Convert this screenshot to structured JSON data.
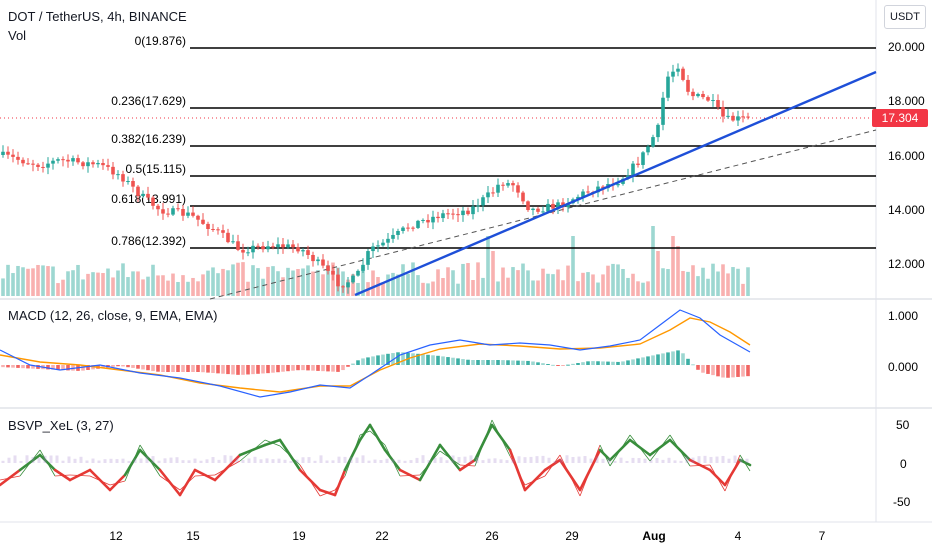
{
  "header": {
    "symbol_line": "DOT / TetherUS, 4h, BINANCE",
    "volume_label": "Vol",
    "currency_button": "USDT",
    "last_price": "17.304"
  },
  "price_axis": {
    "labels": [
      "20.000",
      "18.000",
      "16.000",
      "14.000",
      "12.000"
    ]
  },
  "fib_levels": [
    {
      "label": "0(19.876)"
    },
    {
      "label": "0.236(17.629)"
    },
    {
      "label": "0.382(16.239)"
    },
    {
      "label": "0.5(15.115)"
    },
    {
      "label": "0.618(13.991)"
    },
    {
      "label": "0.786(12.392)"
    }
  ],
  "macd": {
    "label": "MACD (12, 26, close, 9, EMA, EMA)",
    "axis_labels": [
      "1.000",
      "0.000"
    ]
  },
  "bsvp": {
    "label": "BSVP_XeL (3, 27)",
    "axis_labels": [
      "50",
      "0",
      "-50"
    ]
  },
  "time_axis": {
    "labels": [
      "12",
      "15",
      "19",
      "22",
      "26",
      "29",
      "Aug",
      "4",
      "7"
    ]
  },
  "colors": {
    "up": "#26a69a",
    "down": "#ef5350",
    "trendline": "#1e4fd8",
    "macd_line": "#2962ff",
    "signal_line": "#ff9800",
    "bsvp_up": "#388e3c",
    "bsvp_down": "#e53935"
  }
}
